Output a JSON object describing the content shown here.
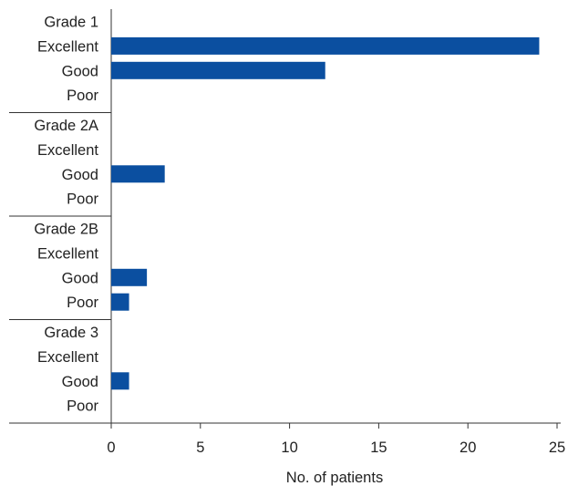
{
  "chart_data": {
    "type": "bar",
    "orientation": "horizontal",
    "xlabel": "No. of patients",
    "ylabel": "",
    "xlim": [
      0,
      25
    ],
    "xticks": [
      0,
      5,
      10,
      15,
      20,
      25
    ],
    "grid": false,
    "legend": "none",
    "bar_color": "#0b4fa0",
    "groups": [
      {
        "name": "Grade 1",
        "categories": [
          "Excellent",
          "Good",
          "Poor"
        ],
        "values": [
          24,
          12,
          0
        ]
      },
      {
        "name": "Grade 2A",
        "categories": [
          "Excellent",
          "Good",
          "Poor"
        ],
        "values": [
          0,
          3,
          0
        ]
      },
      {
        "name": "Grade 2B",
        "categories": [
          "Excellent",
          "Good",
          "Poor"
        ],
        "values": [
          0,
          2,
          1
        ]
      },
      {
        "name": "Grade 3",
        "categories": [
          "Excellent",
          "Good",
          "Poor"
        ],
        "values": [
          0,
          1,
          0
        ]
      }
    ]
  }
}
